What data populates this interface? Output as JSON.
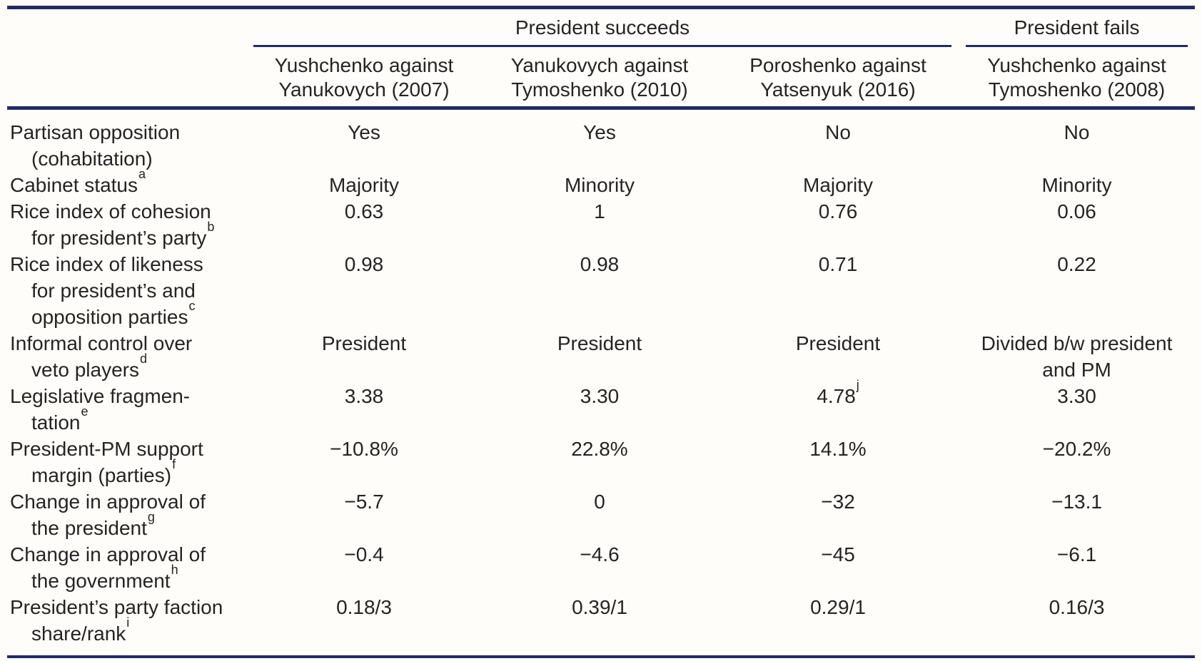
{
  "table": {
    "colors": {
      "rule_navy": "#212b66",
      "text": "#272324",
      "background": "#fffdfa"
    },
    "spanners": [
      {
        "label": "President succeeds",
        "span": 3
      },
      {
        "label": "President fails",
        "span": 1
      }
    ],
    "columns": [
      {
        "lines": [
          "Yushchenko against",
          "Yanukovych (2007)"
        ]
      },
      {
        "lines": [
          "Yanukovych against",
          "Tymoshenko (2010)"
        ]
      },
      {
        "lines": [
          "Poroshenko against",
          "Yatsenyuk (2016)"
        ]
      },
      {
        "lines": [
          "Yushchenko against",
          "Tymoshenko (2008)"
        ]
      }
    ],
    "rows": [
      {
        "label_lines": [
          "Partisan opposition",
          "(cohabitation)"
        ],
        "sup": "",
        "values": [
          {
            "text": "Yes"
          },
          {
            "text": "Yes"
          },
          {
            "text": "No"
          },
          {
            "text": "No"
          }
        ]
      },
      {
        "label_lines": [
          "Cabinet status"
        ],
        "sup": "a",
        "values": [
          {
            "text": "Majority"
          },
          {
            "text": "Minority"
          },
          {
            "text": "Majority"
          },
          {
            "text": "Minority"
          }
        ]
      },
      {
        "label_lines": [
          "Rice index of cohesion",
          "for president’s party"
        ],
        "sup": "b",
        "values": [
          {
            "text": "0.63"
          },
          {
            "text": "1"
          },
          {
            "text": "0.76"
          },
          {
            "text": "0.06"
          }
        ]
      },
      {
        "label_lines": [
          "Rice index of likeness",
          "for president’s and",
          "opposition parties"
        ],
        "sup": "c",
        "values": [
          {
            "text": "0.98"
          },
          {
            "text": "0.98"
          },
          {
            "text": "0.71"
          },
          {
            "text": "0.22"
          }
        ]
      },
      {
        "label_lines": [
          "Informal control over",
          "veto players"
        ],
        "sup": "d",
        "values": [
          {
            "text": "President"
          },
          {
            "text": "President"
          },
          {
            "text": "President"
          },
          {
            "text": "Divided b/w president and PM"
          }
        ]
      },
      {
        "label_lines": [
          "Legislative fragmen-",
          "tation"
        ],
        "sup": "e",
        "values": [
          {
            "text": "3.38"
          },
          {
            "text": "3.30"
          },
          {
            "text": "4.78",
            "sup": "j"
          },
          {
            "text": "3.30"
          }
        ]
      },
      {
        "label_lines": [
          "President-PM support",
          "margin (parties)"
        ],
        "sup": "f",
        "values": [
          {
            "text": "−10.8%"
          },
          {
            "text": "22.8%"
          },
          {
            "text": "14.1%"
          },
          {
            "text": "−20.2%"
          }
        ]
      },
      {
        "label_lines": [
          "Change in approval of",
          "the president"
        ],
        "sup": "g",
        "values": [
          {
            "text": "−5.7"
          },
          {
            "text": "0"
          },
          {
            "text": "−32"
          },
          {
            "text": "−13.1"
          }
        ]
      },
      {
        "label_lines": [
          "Change in approval of",
          "the government"
        ],
        "sup": "h",
        "values": [
          {
            "text": "−0.4"
          },
          {
            "text": "−4.6"
          },
          {
            "text": "−45"
          },
          {
            "text": "−6.1"
          }
        ]
      },
      {
        "label_lines": [
          "President’s party faction",
          "share/rank"
        ],
        "sup": "i",
        "values": [
          {
            "text": "0.18/3"
          },
          {
            "text": "0.39/1"
          },
          {
            "text": "0.29/1"
          },
          {
            "text": "0.16/3"
          }
        ]
      }
    ]
  }
}
